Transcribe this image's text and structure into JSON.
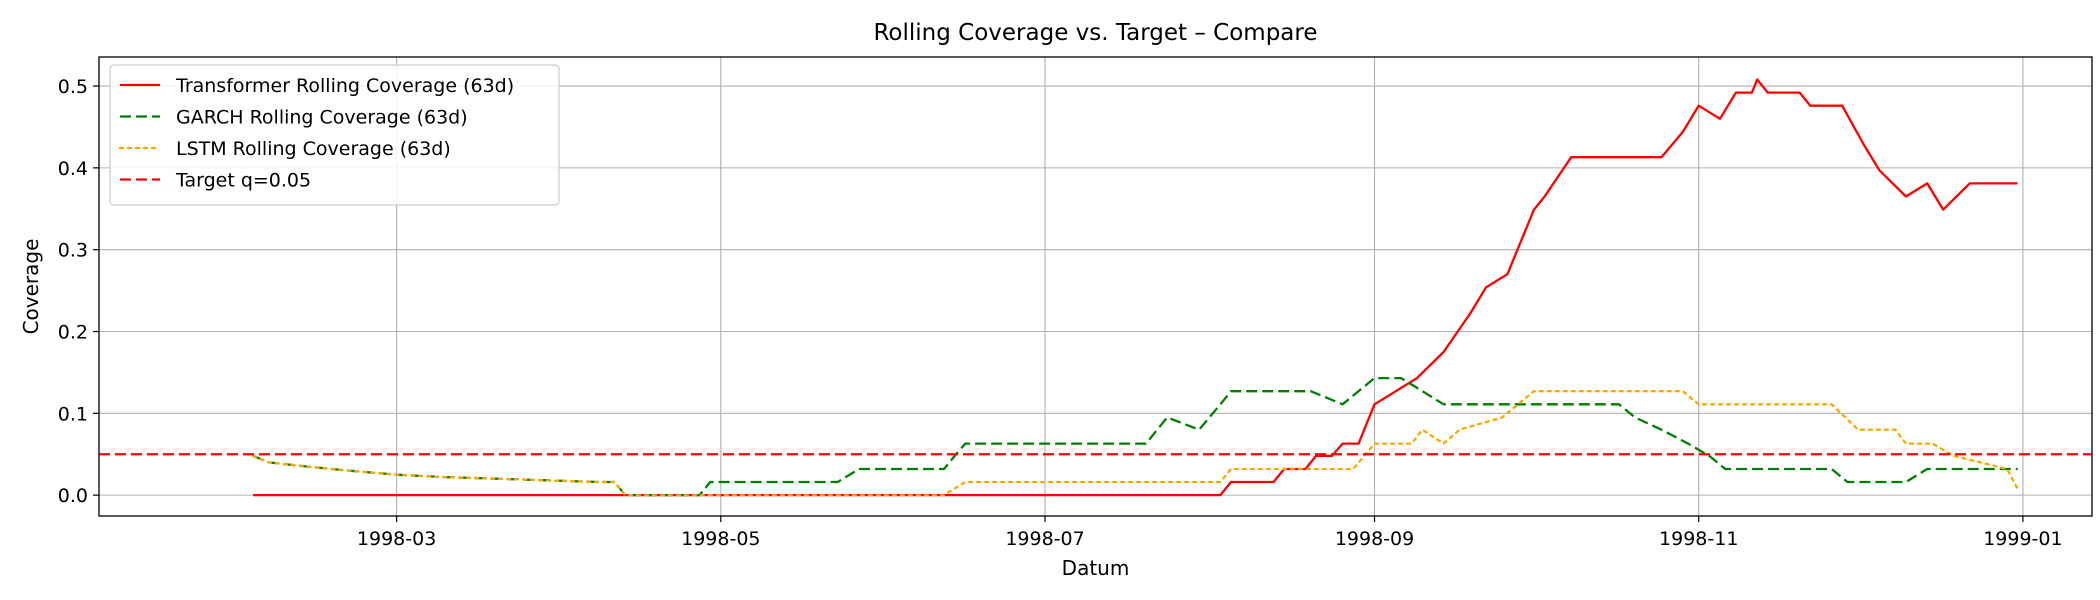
{
  "chart_data": {
    "type": "line",
    "title": "Rolling Coverage vs. Target – Compare",
    "xlabel": "Datum",
    "ylabel": "Coverage",
    "xlim": [
      "1998-01-04",
      "1999-01-14"
    ],
    "ylim": [
      -0.0255,
      0.5355
    ],
    "x_ticks": [
      "1998-03",
      "1998-05",
      "1998-07",
      "1998-09",
      "1998-11",
      "1999-01"
    ],
    "y_ticks": [
      0.0,
      0.1,
      0.2,
      0.3,
      0.4,
      0.5
    ],
    "y_tick_labels": [
      "0.0",
      "0.1",
      "0.2",
      "0.3",
      "0.4",
      "0.5"
    ],
    "grid": true,
    "legend_position": "top-left",
    "series": [
      {
        "name": "Transformer Rolling Coverage (63d)",
        "color": "#ff0000",
        "style": "solid",
        "points": [
          [
            "1998-02-02",
            0.0
          ],
          [
            "1998-08-03",
            0.0
          ],
          [
            "1998-08-05",
            0.016
          ],
          [
            "1998-08-13",
            0.016
          ],
          [
            "1998-08-15",
            0.032
          ],
          [
            "1998-08-19",
            0.032
          ],
          [
            "1998-08-21",
            0.048
          ],
          [
            "1998-08-24",
            0.048
          ],
          [
            "1998-08-26",
            0.063
          ],
          [
            "1998-08-29",
            0.063
          ],
          [
            "1998-09-01",
            0.111
          ],
          [
            "1998-09-09",
            0.143
          ],
          [
            "1998-09-14",
            0.175
          ],
          [
            "1998-09-19",
            0.222
          ],
          [
            "1998-09-22",
            0.254
          ],
          [
            "1998-09-26",
            0.27
          ],
          [
            "1998-10-01",
            0.349
          ],
          [
            "1998-10-03",
            0.365
          ],
          [
            "1998-10-08",
            0.413
          ],
          [
            "1998-10-25",
            0.413
          ],
          [
            "1998-10-29",
            0.444
          ],
          [
            "1998-11-01",
            0.476
          ],
          [
            "1998-11-05",
            0.46
          ],
          [
            "1998-11-08",
            0.492
          ],
          [
            "1998-11-11",
            0.492
          ],
          [
            "1998-11-12",
            0.508
          ],
          [
            "1998-11-14",
            0.492
          ],
          [
            "1998-11-20",
            0.492
          ],
          [
            "1998-11-22",
            0.476
          ],
          [
            "1998-11-28",
            0.476
          ],
          [
            "1998-12-02",
            0.429
          ],
          [
            "1998-12-05",
            0.397
          ],
          [
            "1998-12-10",
            0.365
          ],
          [
            "1998-12-14",
            0.381
          ],
          [
            "1998-12-17",
            0.349
          ],
          [
            "1998-12-22",
            0.381
          ],
          [
            "1998-12-31",
            0.381
          ]
        ]
      },
      {
        "name": "GARCH Rolling Coverage (63d)",
        "color": "#008000",
        "style": "dashed",
        "points": [
          [
            "1998-02-02",
            0.048
          ],
          [
            "1998-02-05",
            0.04
          ],
          [
            "1998-02-12",
            0.035
          ],
          [
            "1998-02-20",
            0.03
          ],
          [
            "1998-03-01",
            0.025
          ],
          [
            "1998-03-10",
            0.022
          ],
          [
            "1998-03-25",
            0.019
          ],
          [
            "1998-04-08",
            0.016
          ],
          [
            "1998-04-11",
            0.016
          ],
          [
            "1998-04-13",
            0.0
          ],
          [
            "1998-04-27",
            0.0
          ],
          [
            "1998-04-29",
            0.016
          ],
          [
            "1998-05-23",
            0.016
          ],
          [
            "1998-05-27",
            0.032
          ],
          [
            "1998-06-12",
            0.032
          ],
          [
            "1998-06-14",
            0.048
          ],
          [
            "1998-06-16",
            0.063
          ],
          [
            "1998-07-20",
            0.063
          ],
          [
            "1998-07-24",
            0.095
          ],
          [
            "1998-07-30",
            0.08
          ],
          [
            "1998-08-03",
            0.111
          ],
          [
            "1998-08-05",
            0.127
          ],
          [
            "1998-08-20",
            0.127
          ],
          [
            "1998-08-26",
            0.111
          ],
          [
            "1998-09-01",
            0.143
          ],
          [
            "1998-09-06",
            0.143
          ],
          [
            "1998-09-10",
            0.127
          ],
          [
            "1998-09-14",
            0.111
          ],
          [
            "1998-10-17",
            0.111
          ],
          [
            "1998-10-20",
            0.095
          ],
          [
            "1998-10-25",
            0.08
          ],
          [
            "1998-10-30",
            0.063
          ],
          [
            "1998-11-03",
            0.048
          ],
          [
            "1998-11-06",
            0.032
          ],
          [
            "1998-11-26",
            0.032
          ],
          [
            "1998-11-29",
            0.016
          ],
          [
            "1998-12-10",
            0.016
          ],
          [
            "1998-12-14",
            0.032
          ],
          [
            "1998-12-31",
            0.032
          ]
        ]
      },
      {
        "name": "LSTM Rolling Coverage (63d)",
        "color": "#ffa500",
        "style": "dotted",
        "points": [
          [
            "1998-02-02",
            0.048
          ],
          [
            "1998-02-05",
            0.04
          ],
          [
            "1998-02-12",
            0.035
          ],
          [
            "1998-02-20",
            0.03
          ],
          [
            "1998-03-01",
            0.025
          ],
          [
            "1998-03-10",
            0.022
          ],
          [
            "1998-03-25",
            0.019
          ],
          [
            "1998-04-08",
            0.016
          ],
          [
            "1998-04-11",
            0.016
          ],
          [
            "1998-04-13",
            0.0
          ],
          [
            "1998-06-12",
            0.0
          ],
          [
            "1998-06-16",
            0.016
          ],
          [
            "1998-08-03",
            0.016
          ],
          [
            "1998-08-05",
            0.032
          ],
          [
            "1998-08-28",
            0.032
          ],
          [
            "1998-09-01",
            0.063
          ],
          [
            "1998-09-08",
            0.063
          ],
          [
            "1998-09-10",
            0.08
          ],
          [
            "1998-09-14",
            0.063
          ],
          [
            "1998-09-17",
            0.08
          ],
          [
            "1998-09-25",
            0.095
          ],
          [
            "1998-10-01",
            0.127
          ],
          [
            "1998-10-29",
            0.127
          ],
          [
            "1998-11-01",
            0.111
          ],
          [
            "1998-11-26",
            0.111
          ],
          [
            "1998-12-01",
            0.08
          ],
          [
            "1998-12-08",
            0.08
          ],
          [
            "1998-12-10",
            0.063
          ],
          [
            "1998-12-15",
            0.063
          ],
          [
            "1998-12-19",
            0.048
          ],
          [
            "1998-12-29",
            0.032
          ],
          [
            "1998-12-31",
            0.008
          ]
        ]
      }
    ],
    "hlines": [
      {
        "name": "Target q=0.05",
        "y": 0.05,
        "color": "#ff0000",
        "style": "dashed"
      }
    ]
  }
}
